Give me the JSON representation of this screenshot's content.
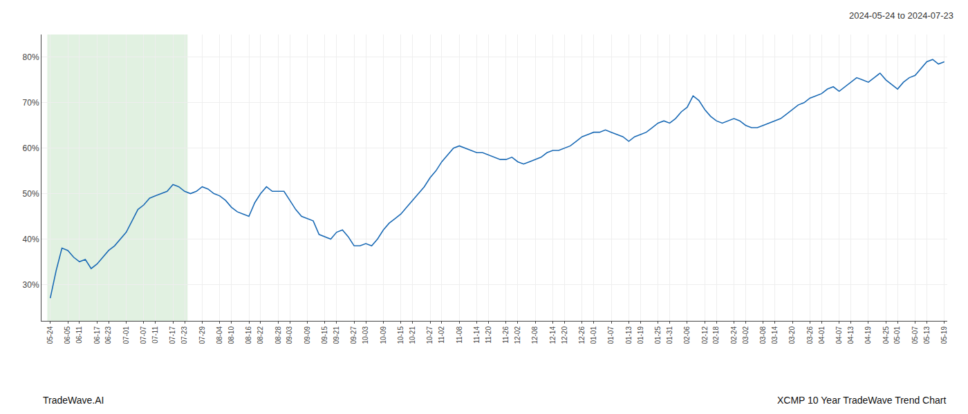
{
  "chart_data": {
    "type": "line",
    "title": "2024-05-24 to 2024-07-23",
    "annotations": [
      "TradeWave.AI",
      "XCMP 10 Year TradeWave Trend Chart"
    ],
    "categories": [
      "05-24",
      null,
      null,
      "06-05",
      null,
      "06-11",
      null,
      null,
      "06-17",
      null,
      "06-23",
      null,
      null,
      "07-01",
      null,
      null,
      "07-07",
      null,
      "07-11",
      null,
      null,
      "07-17",
      null,
      "07-23",
      null,
      null,
      "07-29",
      null,
      null,
      "08-04",
      null,
      "08-10",
      null,
      null,
      "08-16",
      null,
      "08-22",
      null,
      null,
      "08-28",
      null,
      "09-03",
      null,
      null,
      "09-09",
      null,
      null,
      "09-15",
      null,
      "09-21",
      null,
      null,
      "09-27",
      null,
      "10-03",
      null,
      null,
      "10-09",
      null,
      null,
      "10-15",
      null,
      "10-21",
      null,
      null,
      "10-27",
      null,
      "11-02",
      null,
      null,
      "11-08",
      null,
      null,
      "11-14",
      null,
      "11-20",
      null,
      null,
      "11-26",
      null,
      "12-02",
      null,
      null,
      "12-08",
      null,
      null,
      "12-14",
      null,
      "12-20",
      null,
      null,
      "12-26",
      null,
      "01-01",
      null,
      null,
      "01-07",
      null,
      null,
      "01-13",
      null,
      "01-19",
      null,
      null,
      "01-25",
      null,
      "01-31",
      null,
      null,
      "02-06",
      null,
      null,
      "02-12",
      null,
      "02-18",
      null,
      null,
      "02-24",
      null,
      "03-02",
      null,
      null,
      "03-08",
      null,
      "03-14",
      null,
      null,
      "03-20",
      null,
      null,
      "03-26",
      null,
      "04-01",
      null,
      null,
      "04-07",
      null,
      "04-13",
      null,
      null,
      "04-19",
      null,
      null,
      "04-25",
      null,
      "05-01",
      null,
      null,
      "05-07",
      null,
      "05-13",
      null,
      null,
      "05-19"
    ],
    "values": [
      27.0,
      33.0,
      38.0,
      37.5,
      36.0,
      35.0,
      35.5,
      33.5,
      34.5,
      36.0,
      37.5,
      38.5,
      40.0,
      41.5,
      44.0,
      46.5,
      47.5,
      49.0,
      49.5,
      50.0,
      50.5,
      52.0,
      51.5,
      50.5,
      50.0,
      50.5,
      51.5,
      51.0,
      50.0,
      49.5,
      48.5,
      47.0,
      46.0,
      45.5,
      45.0,
      48.0,
      50.0,
      51.5,
      50.5,
      50.5,
      50.5,
      48.5,
      46.5,
      45.0,
      44.5,
      44.0,
      41.0,
      40.5,
      40.0,
      41.5,
      42.0,
      40.5,
      38.5,
      38.5,
      39.0,
      38.5,
      40.0,
      42.0,
      43.5,
      44.5,
      45.5,
      47.0,
      48.5,
      50.0,
      51.5,
      53.5,
      55.0,
      57.0,
      58.5,
      60.0,
      60.5,
      60.0,
      59.5,
      59.0,
      59.0,
      58.5,
      58.0,
      57.5,
      57.5,
      58.0,
      57.0,
      56.5,
      57.0,
      57.5,
      58.0,
      59.0,
      59.5,
      59.5,
      60.0,
      60.5,
      61.5,
      62.5,
      63.0,
      63.5,
      63.5,
      64.0,
      63.5,
      63.0,
      62.5,
      61.5,
      62.5,
      63.0,
      63.5,
      64.5,
      65.5,
      66.0,
      65.5,
      66.5,
      68.0,
      69.0,
      71.5,
      70.5,
      68.5,
      67.0,
      66.0,
      65.5,
      66.0,
      66.5,
      66.0,
      65.0,
      64.5,
      64.5,
      65.0,
      65.5,
      66.0,
      66.5,
      67.5,
      68.5,
      69.5,
      70.0,
      71.0,
      71.5,
      72.0,
      73.0,
      73.5,
      72.5,
      73.5,
      74.5,
      75.5,
      75.0,
      74.5,
      75.5,
      76.5,
      75.0,
      74.0,
      73.0,
      74.5,
      75.5,
      76.0,
      77.5,
      79.0,
      79.5,
      78.5,
      79.0
    ],
    "color": "#1a6ab5",
    "highlight": {
      "start": "05-24",
      "end": "07-23",
      "color": "#c8e6c9"
    },
    "ylim": [
      22,
      85
    ],
    "yticks": [
      {
        "value": 30,
        "label": "30%"
      },
      {
        "value": 40,
        "label": "40%"
      },
      {
        "value": 50,
        "label": "50%"
      },
      {
        "value": 60,
        "label": "60%"
      },
      {
        "value": 70,
        "label": "70%"
      },
      {
        "value": 80,
        "label": "80%"
      }
    ],
    "grid": true
  }
}
